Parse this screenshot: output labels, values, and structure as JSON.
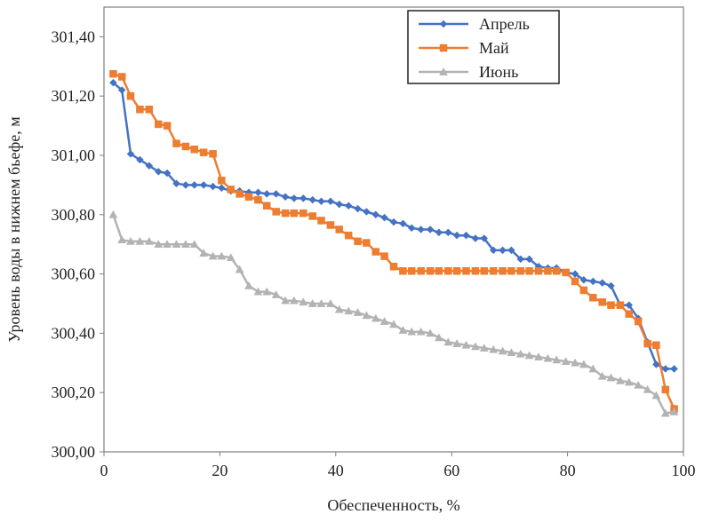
{
  "chart_data": {
    "type": "line",
    "xlabel": "Обеспеченность, %",
    "ylabel": "Уровень воды в нижнем бьефе, м",
    "xlim": [
      0,
      100
    ],
    "ylim": [
      300.0,
      301.5
    ],
    "x_ticks": [
      0,
      20,
      40,
      60,
      80,
      100
    ],
    "x_tick_labels": [
      "0",
      "20",
      "40",
      "60",
      "80",
      "100"
    ],
    "y_ticks": [
      300.0,
      300.2,
      300.4,
      300.6,
      300.8,
      301.0,
      301.2,
      301.4
    ],
    "y_tick_labels": [
      "300,00",
      "300,20",
      "300,40",
      "300,60",
      "300,80",
      "301,00",
      "301,20",
      "301,40"
    ],
    "grid": false,
    "legend_position": "top-right",
    "series": [
      {
        "name": "Апрель",
        "color": "#4472C4",
        "marker": "diamond",
        "points": [
          [
            1.6,
            301.245
          ],
          [
            3.1,
            301.22
          ],
          [
            4.6,
            301.005
          ],
          [
            6.2,
            300.985
          ],
          [
            7.8,
            300.965
          ],
          [
            9.4,
            300.945
          ],
          [
            10.9,
            300.94
          ],
          [
            12.5,
            300.905
          ],
          [
            14.1,
            300.9
          ],
          [
            15.6,
            300.9
          ],
          [
            17.2,
            300.9
          ],
          [
            18.8,
            300.895
          ],
          [
            20.3,
            300.89
          ],
          [
            21.9,
            300.88
          ],
          [
            23.4,
            300.88
          ],
          [
            25.0,
            300.875
          ],
          [
            26.6,
            300.875
          ],
          [
            28.1,
            300.87
          ],
          [
            29.7,
            300.87
          ],
          [
            31.3,
            300.86
          ],
          [
            32.8,
            300.855
          ],
          [
            34.4,
            300.855
          ],
          [
            36.0,
            300.85
          ],
          [
            37.5,
            300.845
          ],
          [
            39.1,
            300.845
          ],
          [
            40.6,
            300.835
          ],
          [
            42.2,
            300.83
          ],
          [
            43.8,
            300.82
          ],
          [
            45.3,
            300.81
          ],
          [
            46.9,
            300.8
          ],
          [
            48.4,
            300.79
          ],
          [
            50.0,
            300.775
          ],
          [
            51.6,
            300.77
          ],
          [
            53.1,
            300.755
          ],
          [
            54.7,
            300.75
          ],
          [
            56.3,
            300.75
          ],
          [
            57.8,
            300.74
          ],
          [
            59.4,
            300.74
          ],
          [
            60.9,
            300.73
          ],
          [
            62.5,
            300.73
          ],
          [
            64.1,
            300.72
          ],
          [
            65.6,
            300.72
          ],
          [
            67.2,
            300.68
          ],
          [
            68.8,
            300.68
          ],
          [
            70.3,
            300.68
          ],
          [
            71.9,
            300.65
          ],
          [
            73.4,
            300.65
          ],
          [
            75.0,
            300.625
          ],
          [
            76.6,
            300.62
          ],
          [
            78.1,
            300.62
          ],
          [
            79.7,
            300.605
          ],
          [
            81.3,
            300.6
          ],
          [
            82.8,
            300.58
          ],
          [
            84.4,
            300.575
          ],
          [
            86.0,
            300.57
          ],
          [
            87.5,
            300.56
          ],
          [
            89.1,
            300.495
          ],
          [
            90.6,
            300.495
          ],
          [
            92.2,
            300.45
          ],
          [
            93.8,
            300.37
          ],
          [
            95.3,
            300.295
          ],
          [
            96.9,
            300.28
          ],
          [
            98.4,
            300.28
          ]
        ]
      },
      {
        "name": "Май",
        "color": "#ED7D31",
        "marker": "square",
        "points": [
          [
            1.6,
            301.275
          ],
          [
            3.1,
            301.265
          ],
          [
            4.6,
            301.2
          ],
          [
            6.2,
            301.155
          ],
          [
            7.8,
            301.155
          ],
          [
            9.4,
            301.105
          ],
          [
            10.9,
            301.1
          ],
          [
            12.5,
            301.04
          ],
          [
            14.1,
            301.03
          ],
          [
            15.6,
            301.02
          ],
          [
            17.2,
            301.01
          ],
          [
            18.8,
            301.005
          ],
          [
            20.3,
            300.915
          ],
          [
            21.9,
            300.885
          ],
          [
            23.4,
            300.87
          ],
          [
            25.0,
            300.86
          ],
          [
            26.6,
            300.85
          ],
          [
            28.1,
            300.83
          ],
          [
            29.7,
            300.81
          ],
          [
            31.3,
            300.805
          ],
          [
            32.8,
            300.805
          ],
          [
            34.4,
            300.805
          ],
          [
            36.0,
            300.795
          ],
          [
            37.5,
            300.78
          ],
          [
            39.1,
            300.765
          ],
          [
            40.6,
            300.75
          ],
          [
            42.2,
            300.73
          ],
          [
            43.8,
            300.71
          ],
          [
            45.3,
            300.705
          ],
          [
            46.9,
            300.675
          ],
          [
            48.4,
            300.66
          ],
          [
            50.0,
            300.625
          ],
          [
            51.6,
            300.61
          ],
          [
            53.1,
            300.61
          ],
          [
            54.7,
            300.61
          ],
          [
            56.3,
            300.61
          ],
          [
            57.8,
            300.61
          ],
          [
            59.4,
            300.61
          ],
          [
            60.9,
            300.61
          ],
          [
            62.5,
            300.61
          ],
          [
            64.1,
            300.61
          ],
          [
            65.6,
            300.61
          ],
          [
            67.2,
            300.61
          ],
          [
            68.8,
            300.61
          ],
          [
            70.3,
            300.61
          ],
          [
            71.9,
            300.61
          ],
          [
            73.4,
            300.61
          ],
          [
            75.0,
            300.61
          ],
          [
            76.6,
            300.61
          ],
          [
            78.1,
            300.61
          ],
          [
            79.7,
            300.605
          ],
          [
            81.3,
            300.575
          ],
          [
            82.8,
            300.545
          ],
          [
            84.4,
            300.52
          ],
          [
            86.0,
            300.505
          ],
          [
            87.5,
            300.495
          ],
          [
            89.1,
            300.495
          ],
          [
            90.6,
            300.465
          ],
          [
            92.2,
            300.44
          ],
          [
            93.8,
            300.365
          ],
          [
            95.3,
            300.36
          ],
          [
            96.9,
            300.21
          ],
          [
            98.4,
            300.145
          ]
        ]
      },
      {
        "name": "Июнь",
        "color": "#B3B3B3",
        "marker": "triangle",
        "points": [
          [
            1.6,
            300.8
          ],
          [
            3.1,
            300.715
          ],
          [
            4.6,
            300.71
          ],
          [
            6.2,
            300.71
          ],
          [
            7.8,
            300.71
          ],
          [
            9.4,
            300.7
          ],
          [
            10.9,
            300.7
          ],
          [
            12.5,
            300.7
          ],
          [
            14.1,
            300.7
          ],
          [
            15.6,
            300.7
          ],
          [
            17.2,
            300.67
          ],
          [
            18.8,
            300.66
          ],
          [
            20.3,
            300.66
          ],
          [
            21.9,
            300.655
          ],
          [
            23.4,
            300.615
          ],
          [
            25.0,
            300.56
          ],
          [
            26.6,
            300.54
          ],
          [
            28.1,
            300.54
          ],
          [
            29.7,
            300.53
          ],
          [
            31.3,
            300.51
          ],
          [
            32.8,
            300.51
          ],
          [
            34.4,
            300.505
          ],
          [
            36.0,
            300.5
          ],
          [
            37.5,
            300.5
          ],
          [
            39.1,
            300.5
          ],
          [
            40.6,
            300.48
          ],
          [
            42.2,
            300.475
          ],
          [
            43.8,
            300.47
          ],
          [
            45.3,
            300.46
          ],
          [
            46.9,
            300.45
          ],
          [
            48.4,
            300.44
          ],
          [
            50.0,
            300.43
          ],
          [
            51.6,
            300.41
          ],
          [
            53.1,
            300.405
          ],
          [
            54.7,
            300.405
          ],
          [
            56.3,
            300.4
          ],
          [
            57.8,
            300.385
          ],
          [
            59.4,
            300.37
          ],
          [
            60.9,
            300.365
          ],
          [
            62.5,
            300.36
          ],
          [
            64.1,
            300.355
          ],
          [
            65.6,
            300.35
          ],
          [
            67.2,
            300.345
          ],
          [
            68.8,
            300.34
          ],
          [
            70.3,
            300.335
          ],
          [
            71.9,
            300.33
          ],
          [
            73.4,
            300.325
          ],
          [
            75.0,
            300.32
          ],
          [
            76.6,
            300.315
          ],
          [
            78.1,
            300.31
          ],
          [
            79.7,
            300.305
          ],
          [
            81.3,
            300.3
          ],
          [
            82.8,
            300.295
          ],
          [
            84.4,
            300.28
          ],
          [
            86.0,
            300.255
          ],
          [
            87.5,
            300.25
          ],
          [
            89.1,
            300.24
          ],
          [
            90.6,
            300.235
          ],
          [
            92.2,
            300.225
          ],
          [
            93.8,
            300.21
          ],
          [
            95.3,
            300.19
          ],
          [
            96.9,
            300.13
          ],
          [
            98.4,
            300.135
          ]
        ]
      }
    ]
  }
}
